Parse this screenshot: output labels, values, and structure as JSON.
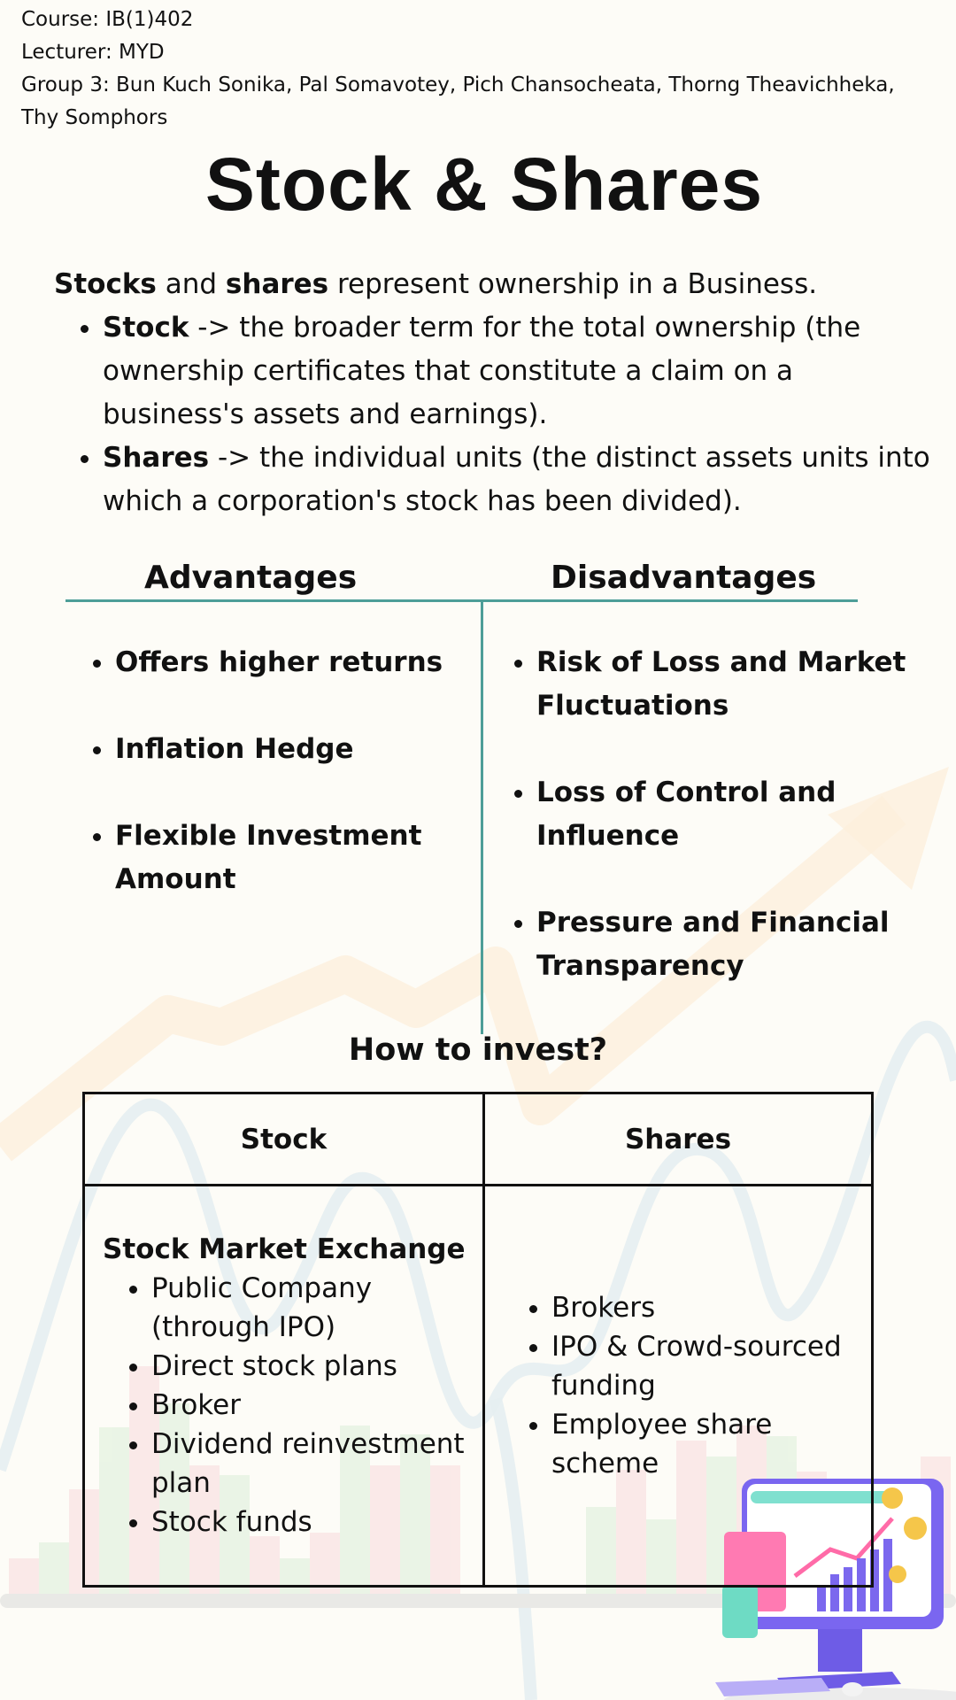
{
  "header": {
    "course": "Course: IB(1)402",
    "lecturer": "Lecturer: MYD",
    "group_line1": "Group 3: Bun Kuch Sonika, Pal Somavotey,  Pich Chansocheata, Thorng Theavichheka,",
    "group_line2": "Thy Somphors"
  },
  "title": "Stock & Shares",
  "intro": {
    "lead_stocks": "Stocks",
    "lead_and": " and ",
    "lead_shares": "shares",
    "lead_rest": " represent ownership in a Business.",
    "bullets": [
      {
        "term": "Stock",
        "text": " -> the broader term for the total ownership (the ownership certificates that constitute a claim on a business's assets and earnings)."
      },
      {
        "term": "Shares",
        "text": " -> the individual units (the distinct assets units into which a corporation's stock has been divided)."
      }
    ]
  },
  "advantages": {
    "heading": "Advantages",
    "items": [
      "Offers higher returns",
      "Inflation Hedge",
      "Flexible Investment Amount"
    ]
  },
  "disadvantages": {
    "heading": "Disadvantages",
    "items": [
      "Risk of Loss and Market Fluctuations",
      "Loss of Control and Influence",
      "Pressure and Financial Transparency"
    ]
  },
  "invest": {
    "heading": "How to invest?",
    "col_stock": "Stock",
    "col_shares": "Shares",
    "stock_subheading": "Stock Market Exchange",
    "stock_items": [
      "Public Company (through IPO)",
      "Direct stock plans",
      "Broker",
      "Dividend reinvestment plan",
      "Stock funds"
    ],
    "shares_items": [
      "Brokers",
      "IPO & Crowd-sourced funding",
      "Employee share scheme"
    ]
  },
  "colors": {
    "background": "#fdfcf7",
    "accent_line": "#4d9e98",
    "text": "#111111"
  }
}
